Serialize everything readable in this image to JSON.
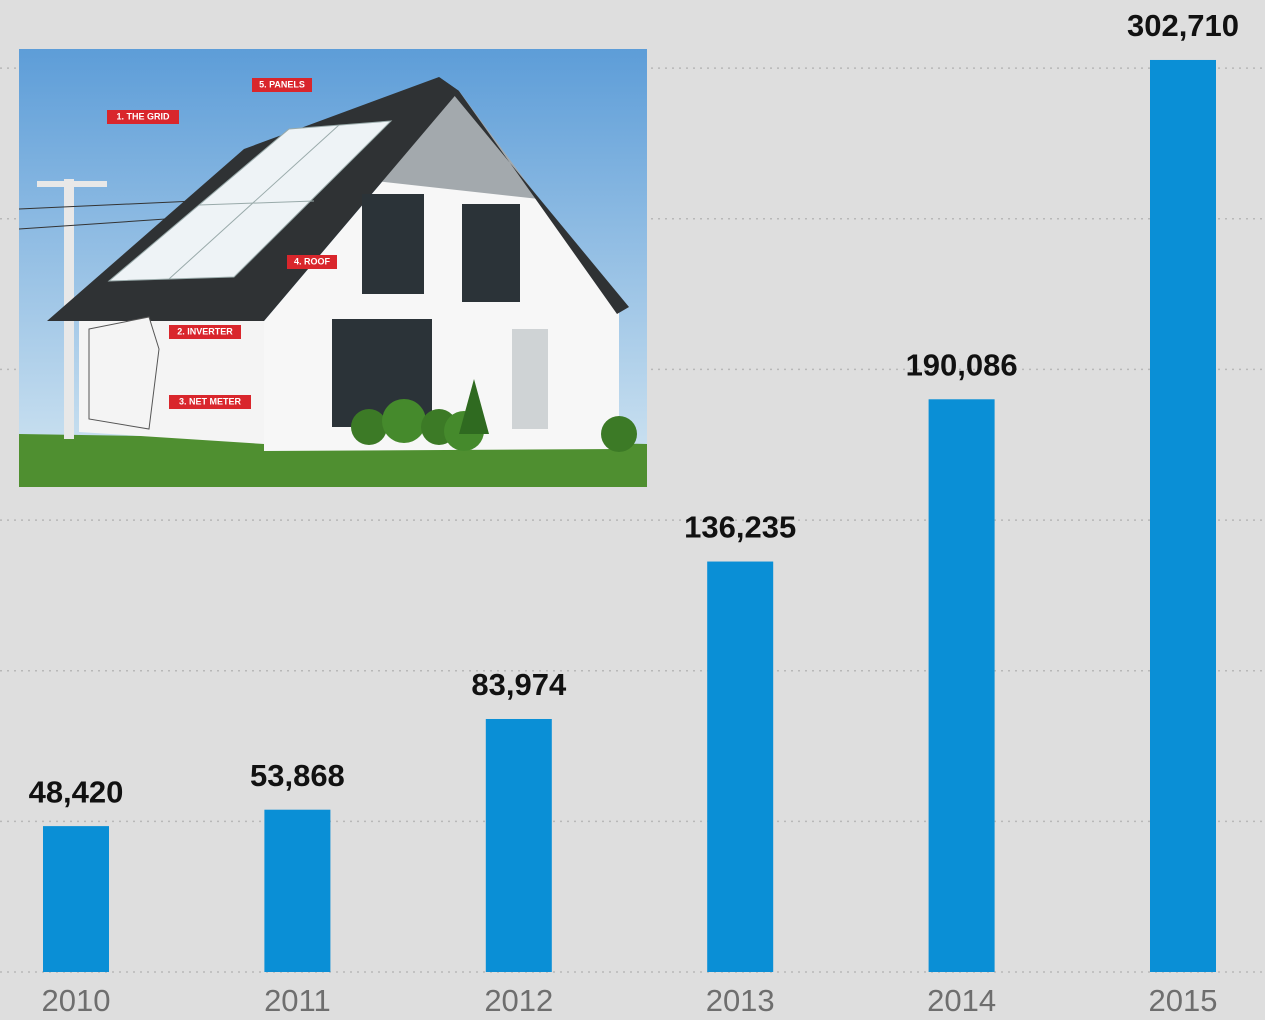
{
  "chart_data": {
    "type": "bar",
    "categories": [
      "2010",
      "2011",
      "2012",
      "2013",
      "2014",
      "2015"
    ],
    "values": [
      48420,
      53868,
      83974,
      136235,
      190086,
      302710
    ],
    "value_labels": [
      "48,420",
      "53,868",
      "83,974",
      "136,235",
      "190,086",
      "302,710"
    ],
    "color": "#0a8fd6",
    "ylim": [
      0,
      310000
    ],
    "gridlines": [
      0,
      50000,
      100000,
      150000,
      200000,
      250000,
      300000
    ],
    "grid": true,
    "annotations": [
      "1. THE GRID",
      "5. PANELS",
      "4. ROOF",
      "2. INVERTER",
      "3. NET METER"
    ]
  }
}
